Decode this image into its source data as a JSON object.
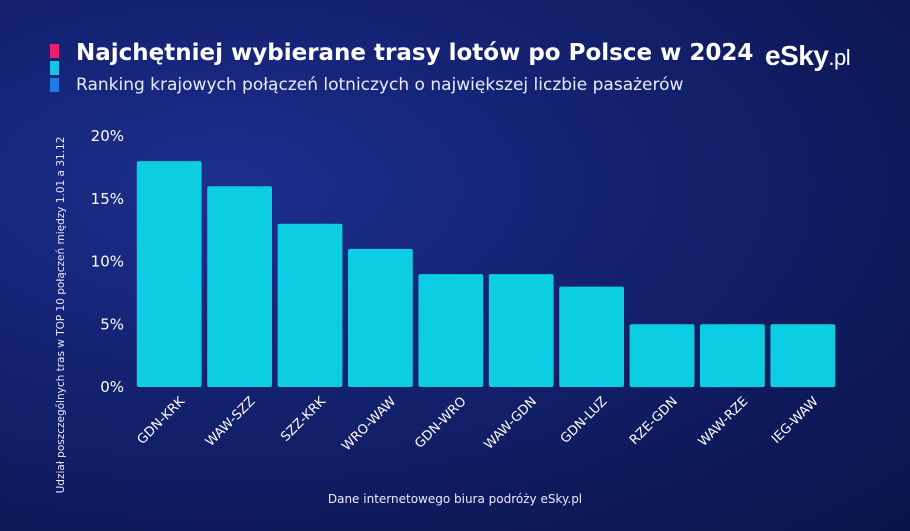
{
  "header": {
    "title": "Najchętniej wybierane trasy lotów po Polsce w 2024",
    "subtitle": "Ranking krajowych połączeń lotniczych o największej liczbie pasażerów"
  },
  "logo": {
    "brand": "eSky",
    "suffix": ".pl"
  },
  "footer": {
    "source": "Dane internetowego biura podróży eSky.pl"
  },
  "colors": {
    "bar": "#0dcde3",
    "accent": [
      "#ee1d6e",
      "#19c3e6",
      "#1e7ae6"
    ]
  },
  "chart_data": {
    "type": "bar",
    "title": "Najchętniej wybierane trasy lotów po Polsce w 2024",
    "subtitle": "Ranking krajowych połączeń lotniczych o największej liczbie pasażerów",
    "ylabel": "Udział poszczególnych tras w TOP 10 połączeń między 1.01 a 31.12",
    "xlabel": "",
    "categories": [
      "GDN-KRK",
      "WAW-SZZ",
      "SZZ-KRK",
      "WRO-WAW",
      "GDN-WRO",
      "WAW-GDN",
      "GDN-LUZ",
      "RZE-GDN",
      "WAW-RZE",
      "IEG-WAW"
    ],
    "values": [
      18,
      16,
      13,
      11,
      9,
      9,
      8,
      5,
      5,
      5
    ],
    "ylim": [
      0,
      20
    ],
    "yticks": [
      0,
      5,
      10,
      15,
      20
    ],
    "yticklabels": [
      "0%",
      "5%",
      "10%",
      "15%",
      "20%"
    ],
    "grid": false,
    "legend": "none"
  }
}
